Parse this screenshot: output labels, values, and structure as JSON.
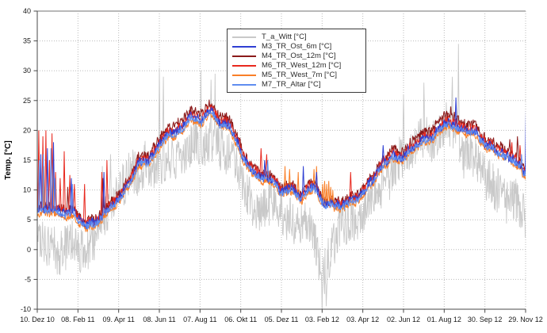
{
  "chart_data": {
    "type": "line",
    "title": "",
    "xlabel": "",
    "ylabel": "Temp. [°C]",
    "ylim": [
      -10,
      40
    ],
    "xlim_days": [
      0,
      722
    ],
    "grid": "on",
    "legend_position": "top-center",
    "y_ticks": [
      40,
      35,
      30,
      25,
      20,
      15,
      10,
      5,
      0,
      -5,
      -10
    ],
    "x_ticks": [
      {
        "day": 0,
        "label": "10. Dez 10"
      },
      {
        "day": 60,
        "label": "08. Feb 11"
      },
      {
        "day": 120,
        "label": "09. Apr 11"
      },
      {
        "day": 180,
        "label": "08. Jun 11"
      },
      {
        "day": 240,
        "label": "07. Aug 11"
      },
      {
        "day": 300,
        "label": "06. Okt 11"
      },
      {
        "day": 360,
        "label": "05. Dez 11"
      },
      {
        "day": 420,
        "label": "03. Feb 12"
      },
      {
        "day": 480,
        "label": "03. Apr 12"
      },
      {
        "day": 540,
        "label": "02. Jun 12"
      },
      {
        "day": 600,
        "label": "01. Aug 12"
      },
      {
        "day": 660,
        "label": "30. Sep 12"
      },
      {
        "day": 720,
        "label": "29. Nov 12"
      }
    ],
    "seed": 1337,
    "anchor_step_days": 15,
    "sample_step_days_ambient": 0.6,
    "sample_step_days_band": 0.75,
    "band_wiggle_amp": 1.1,
    "ambient_wiggle_amp": 2.4,
    "draw_order": [
      0,
      2,
      3,
      4,
      1,
      5
    ],
    "series": [
      {
        "name": "T_a_Witt [°C]",
        "color": "#c9c9c9",
        "width": 0.9,
        "noise": 3.8,
        "kind": "ambient",
        "anchors": [
          3.5,
          2.5,
          1.5,
          2.0,
          0.5,
          -0.5,
          3.0,
          6.5,
          8.5,
          11.0,
          13.0,
          14.0,
          17.0,
          16.5,
          17.5,
          18.0,
          18.5,
          19.0,
          17.0,
          15.5,
          11.0,
          8.0,
          6.0,
          7.0,
          4.5,
          3.5,
          2.5,
          3.0,
          -6.5,
          0.5,
          4.0,
          5.0,
          6.5,
          9.0,
          12.0,
          13.5,
          14.5,
          15.5,
          17.0,
          17.5,
          18.5,
          19.0,
          15.5,
          13.5,
          10.5,
          9.0,
          7.5,
          6.0,
          5.5
        ],
        "events": [
          [
            96,
            14
          ],
          [
            108,
            16
          ],
          [
            180,
            30.5
          ],
          [
            186,
            29
          ],
          [
            241,
            30
          ],
          [
            256,
            28.5
          ],
          [
            262,
            29.5
          ],
          [
            420,
            -10.3
          ],
          [
            426,
            -9.5
          ],
          [
            540,
            26
          ],
          [
            570,
            28
          ],
          [
            612,
            29
          ],
          [
            621,
            34.5
          ]
        ]
      },
      {
        "name": "M3_TR_Ost_6m [°C]",
        "color": "#2f3fd3",
        "width": 1,
        "noise": 0.75,
        "kind": "band",
        "anchors": [
          7.1,
          6.9,
          6.6,
          6.4,
          5.6,
          4.7,
          5.6,
          7.6,
          9.6,
          12.1,
          14.6,
          16.1,
          18.6,
          20.1,
          21.1,
          22.6,
          21.6,
          22.6,
          21.1,
          20.6,
          16.6,
          13.6,
          12.1,
          12.6,
          10.1,
          10.6,
          9.1,
          10.6,
          8.1,
          7.9,
          8.3,
          9.1,
          10.1,
          12.1,
          14.1,
          15.6,
          16.1,
          17.6,
          19.1,
          20.1,
          21.6,
          21.1,
          20.1,
          19.1,
          17.1,
          16.1,
          15.1,
          14.1,
          12.6
        ],
        "events": [
          [
            5,
            16
          ],
          [
            15,
            17
          ],
          [
            24,
            18
          ],
          [
            50,
            12
          ],
          [
            98,
            13
          ],
          [
            335,
            15
          ],
          [
            392,
            14
          ],
          [
            412,
            13
          ],
          [
            510,
            17.5
          ],
          [
            617,
            25.5
          ],
          [
            721,
            24.5
          ]
        ]
      },
      {
        "name": "M4_TR_Ost_12m [°C]",
        "color": "#8b1a1a",
        "width": 1,
        "noise": 0.9,
        "kind": "band",
        "anchors": [
          7.6,
          7.4,
          7.1,
          6.9,
          6.1,
          5.2,
          6.1,
          8.2,
          10.3,
          12.9,
          15.5,
          17.1,
          19.7,
          21.2,
          22.2,
          23.7,
          22.7,
          23.7,
          22.2,
          21.6,
          17.4,
          14.2,
          12.7,
          13.2,
          10.6,
          11.1,
          9.6,
          11.1,
          8.5,
          8.3,
          8.7,
          9.6,
          10.7,
          12.8,
          14.8,
          16.4,
          17.0,
          18.6,
          20.2,
          21.2,
          22.8,
          22.3,
          21.2,
          20.1,
          18.0,
          16.9,
          15.9,
          14.9,
          13.4
        ],
        "events": [
          [
            45,
            10.5
          ],
          [
            97,
            12
          ],
          [
            255,
            24.2
          ],
          [
            260,
            23.8
          ],
          [
            600,
            23.2
          ],
          [
            610,
            24
          ],
          [
            646,
            21.5
          ],
          [
            697,
            18.5
          ],
          [
            708,
            19
          ]
        ]
      },
      {
        "name": "M6_TR_West_12m [°C]",
        "color": "#e8281e",
        "width": 1,
        "noise": 0.8,
        "kind": "band",
        "anchors": [
          7.3,
          7.1,
          6.8,
          6.6,
          5.8,
          4.9,
          5.8,
          7.8,
          9.9,
          12.4,
          14.9,
          16.4,
          18.9,
          20.4,
          21.4,
          22.9,
          21.9,
          22.9,
          21.4,
          20.9,
          16.9,
          13.9,
          12.4,
          12.9,
          10.4,
          10.9,
          9.4,
          10.9,
          8.3,
          8.1,
          8.5,
          9.4,
          10.4,
          12.4,
          14.4,
          15.9,
          16.4,
          17.9,
          19.4,
          20.4,
          21.9,
          21.4,
          20.4,
          19.4,
          17.4,
          16.4,
          15.4,
          14.4,
          12.9
        ],
        "events": [
          [
            2,
            20
          ],
          [
            8,
            19
          ],
          [
            13,
            20
          ],
          [
            18,
            15
          ],
          [
            22,
            19.5
          ],
          [
            27,
            13
          ],
          [
            34,
            12
          ],
          [
            40,
            16.5
          ],
          [
            48,
            12.5
          ],
          [
            55,
            11
          ],
          [
            70,
            11
          ],
          [
            95,
            13
          ],
          [
            103,
            15
          ],
          [
            330,
            17
          ],
          [
            338,
            16
          ],
          [
            462,
            13
          ],
          [
            700,
            18
          ],
          [
            712,
            17.5
          ]
        ]
      },
      {
        "name": "M5_TR_West_7m [°C]",
        "color": "#f97f28",
        "width": 1,
        "noise": 0.55,
        "kind": "band",
        "anchors": [
          6.4,
          6.2,
          5.9,
          5.7,
          4.9,
          4.0,
          4.9,
          6.9,
          8.9,
          11.4,
          13.9,
          15.4,
          17.9,
          19.4,
          20.4,
          21.9,
          20.9,
          21.9,
          20.4,
          19.9,
          15.9,
          12.9,
          11.4,
          11.9,
          9.4,
          9.9,
          8.4,
          9.9,
          7.4,
          7.2,
          7.6,
          8.4,
          9.4,
          11.4,
          13.4,
          14.9,
          15.4,
          16.9,
          18.4,
          19.4,
          20.9,
          20.4,
          19.4,
          18.4,
          16.4,
          15.4,
          14.4,
          13.4,
          11.9
        ],
        "events": [
          [
            10,
            14
          ],
          [
            23,
            15
          ],
          [
            365,
            14
          ],
          [
            372,
            13.5
          ],
          [
            385,
            13
          ],
          [
            408,
            13.5
          ],
          [
            412,
            14
          ],
          [
            421,
            11
          ],
          [
            424,
            11.5
          ],
          [
            427,
            11
          ],
          [
            430,
            11.5
          ],
          [
            433,
            10.5
          ],
          [
            436,
            10
          ]
        ]
      },
      {
        "name": "M7_TR_Altar [°C]",
        "color": "#5f8df0",
        "width": 1,
        "noise": 0.6,
        "kind": "band",
        "anchors": [
          6.8,
          6.6,
          6.3,
          6.1,
          5.3,
          4.4,
          5.3,
          7.3,
          9.3,
          11.8,
          14.3,
          15.8,
          18.3,
          19.8,
          20.8,
          22.3,
          21.3,
          22.3,
          20.8,
          20.3,
          16.3,
          13.3,
          11.8,
          12.3,
          9.8,
          10.3,
          8.8,
          10.3,
          7.8,
          7.6,
          8.0,
          8.8,
          9.8,
          11.8,
          13.8,
          15.3,
          15.8,
          17.3,
          18.8,
          19.8,
          21.3,
          20.8,
          19.8,
          18.8,
          16.8,
          15.8,
          14.8,
          13.8,
          12.3
        ],
        "events": [
          [
            3,
            15
          ],
          [
            9,
            16
          ],
          [
            20,
            17
          ],
          [
            26,
            12
          ],
          [
            52,
            11
          ],
          [
            340,
            15
          ],
          [
            714,
            16
          ]
        ]
      }
    ],
    "style_colors": {
      "axis": "#4a4a4a",
      "top_border": "#b8b8b8",
      "grid": "#bbbbbb",
      "tick_text": "#1a1a1a",
      "background": "#ffffff"
    }
  }
}
